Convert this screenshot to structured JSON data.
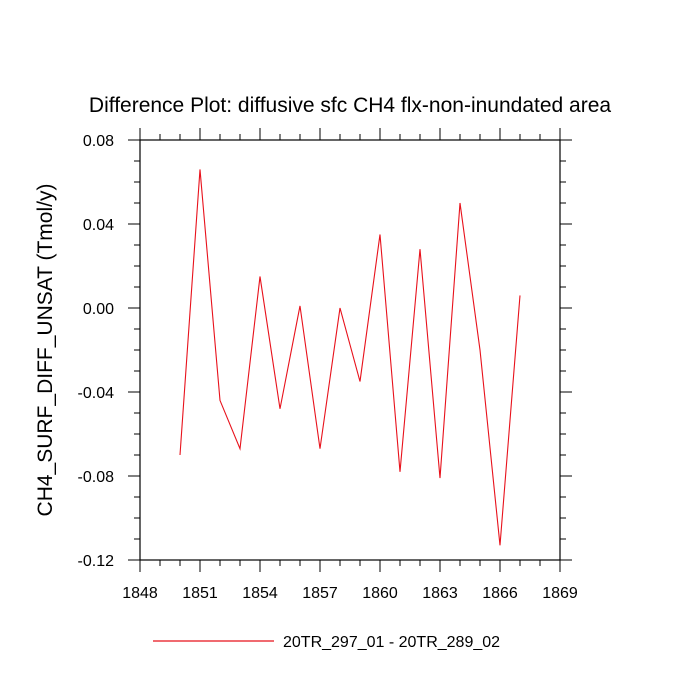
{
  "chart_data": {
    "type": "line",
    "title": "Difference Plot: diffusive sfc CH4 flx-non-inundated area",
    "xlabel": "",
    "ylabel": "CH4_SURF_DIFF_UNSAT  (Tmol/y)",
    "xlim": [
      1848,
      1869
    ],
    "ylim": [
      -0.12,
      0.08
    ],
    "x_ticks": [
      1848,
      1851,
      1854,
      1857,
      1860,
      1863,
      1866,
      1869
    ],
    "x_tick_labels": [
      "1848",
      "1851",
      "1854",
      "1857",
      "1860",
      "1863",
      "1866",
      "1869"
    ],
    "y_ticks": [
      0.08,
      0.04,
      0.0,
      -0.04,
      -0.08,
      -0.12
    ],
    "y_tick_labels": [
      "0.08",
      "0.04",
      "0.00",
      "-0.04",
      "-0.08",
      "-0.12"
    ],
    "grid": false,
    "legend_position": "bottom",
    "series": [
      {
        "name": "20TR_297_01 - 20TR_289_02",
        "color": "#e8111b",
        "x": [
          1850,
          1851,
          1852,
          1853,
          1854,
          1855,
          1856,
          1857,
          1858,
          1859,
          1860,
          1861,
          1862,
          1863,
          1864,
          1865,
          1866,
          1867
        ],
        "y": [
          -0.07,
          0.066,
          -0.044,
          -0.067,
          0.015,
          -0.048,
          0.001,
          -0.067,
          0.0,
          -0.035,
          0.035,
          -0.078,
          0.028,
          -0.081,
          0.05,
          -0.02,
          -0.113,
          0.006
        ]
      }
    ]
  }
}
